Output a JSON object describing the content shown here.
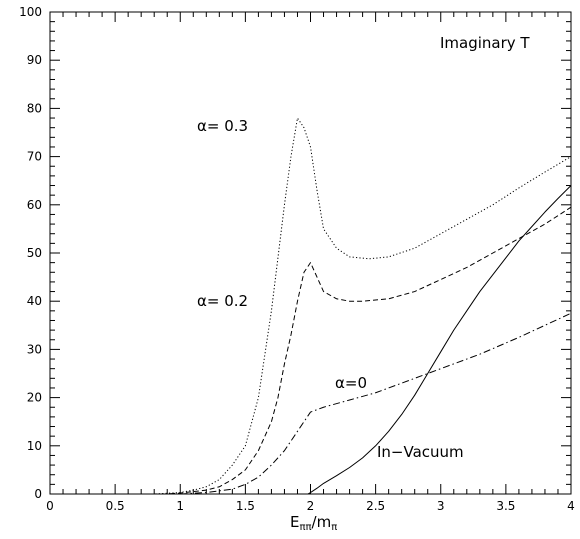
{
  "chart_data": {
    "type": "line",
    "title": "",
    "xlabel_main": "E",
    "xlabel_sub1": "ππ",
    "xlabel_sep": "/m",
    "xlabel_sub2": "π",
    "ylabel": "",
    "xlim": [
      0,
      4
    ],
    "ylim": [
      0,
      100
    ],
    "grid": false,
    "x_ticks": [
      "0",
      "0.5",
      "1",
      "1.5",
      "2",
      "2.5",
      "3",
      "3.5",
      "4"
    ],
    "y_ticks": [
      "0",
      "10",
      "20",
      "30",
      "40",
      "50",
      "60",
      "70",
      "80",
      "90",
      "100"
    ],
    "annotations": {
      "panel": "Imaginary T",
      "a03": "α= 0.3",
      "a02": "α= 0.2",
      "a0": "α=0",
      "vac": "In−Vacuum"
    },
    "series": [
      {
        "key": "alpha_0.3",
        "style": "dotted",
        "x": [
          0,
          0.8,
          1.0,
          1.1,
          1.2,
          1.3,
          1.4,
          1.5,
          1.6,
          1.7,
          1.8,
          1.85,
          1.9,
          1.95,
          2.0,
          2.05,
          2.1,
          2.2,
          2.3,
          2.45,
          2.6,
          2.8,
          3.0,
          3.2,
          3.4,
          3.6,
          3.8,
          4.0
        ],
        "y": [
          0,
          0,
          0.3,
          0.8,
          1.5,
          3,
          6,
          10,
          20,
          38,
          60,
          70,
          78,
          76,
          72,
          63,
          55,
          51,
          49.2,
          48.8,
          49.2,
          51,
          54,
          57,
          60,
          63.5,
          66.8,
          70
        ]
      },
      {
        "key": "alpha_0.2",
        "style": "dashed",
        "x": [
          0,
          0.9,
          1.0,
          1.2,
          1.3,
          1.4,
          1.5,
          1.6,
          1.7,
          1.75,
          1.8,
          1.85,
          1.9,
          1.95,
          2.0,
          2.05,
          2.1,
          2.2,
          2.3,
          2.4,
          2.6,
          2.8,
          3.0,
          3.2,
          3.4,
          3.6,
          3.8,
          4.0
        ],
        "y": [
          0,
          0,
          0.2,
          0.8,
          1.5,
          3,
          5,
          9,
          15,
          20,
          27,
          33,
          40,
          46,
          48,
          45,
          42,
          40.5,
          40,
          40,
          40.5,
          42,
          44.5,
          47,
          50,
          53,
          56,
          59.5
        ]
      },
      {
        "key": "alpha_0",
        "style": "dashdot",
        "x": [
          0,
          1.0,
          1.2,
          1.4,
          1.5,
          1.6,
          1.7,
          1.8,
          1.9,
          1.95,
          2.0,
          2.1,
          2.3,
          2.5,
          2.7,
          3.0,
          3.3,
          3.6,
          3.8,
          4.0
        ],
        "y": [
          0,
          0,
          0.3,
          1,
          2,
          3.5,
          6,
          9,
          13,
          15,
          17,
          18,
          19.5,
          21,
          23,
          26,
          29,
          32.5,
          35,
          37.5
        ]
      },
      {
        "key": "in_vacuum",
        "style": "solid",
        "x": [
          1.98,
          2.0,
          2.05,
          2.1,
          2.2,
          2.3,
          2.4,
          2.5,
          2.6,
          2.7,
          2.8,
          2.9,
          3.0,
          3.1,
          3.2,
          3.3,
          3.4,
          3.5,
          3.6,
          3.7,
          3.8,
          3.9,
          4.0
        ],
        "y": [
          0,
          0.3,
          1.2,
          2.2,
          3.8,
          5.5,
          7.5,
          10,
          13,
          16.5,
          20.5,
          25,
          29.5,
          34,
          38,
          42,
          45.5,
          49,
          52.5,
          55.5,
          58.5,
          61.3,
          64
        ]
      }
    ]
  }
}
